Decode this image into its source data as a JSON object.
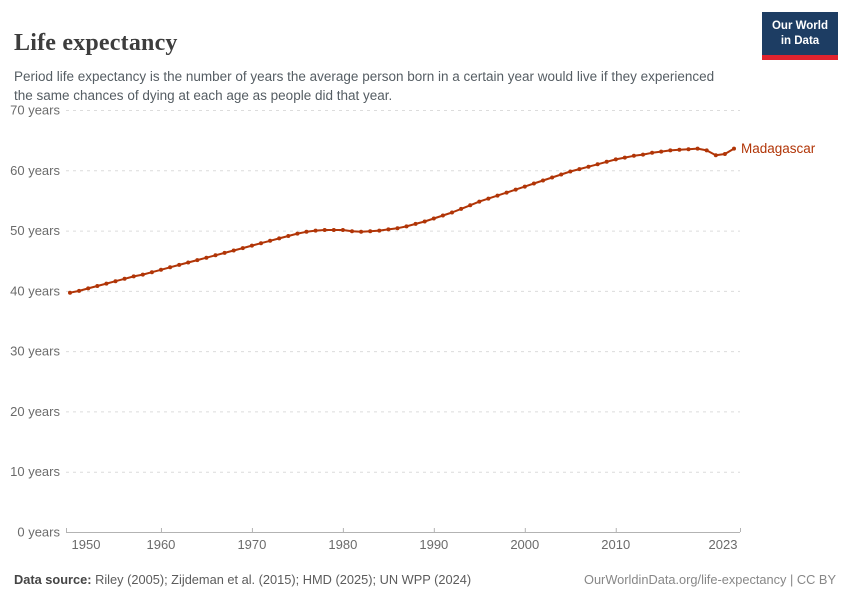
{
  "header": {
    "title": "Life expectancy",
    "subtitle": "Period life expectancy is the number of years the average person born in a certain year would live if they experienced the same chances of dying at each age as people did that year.",
    "logo": {
      "line1": "Our World",
      "line2": "in Data",
      "bg_color": "#1d3d63",
      "accent_color": "#e0232e"
    }
  },
  "chart_data": {
    "type": "line",
    "title": "Life expectancy",
    "entity": "Madagascar",
    "line_color": "#B13507",
    "xlabel": "",
    "ylabel": "",
    "xlim": [
      1950,
      2023
    ],
    "ylim": [
      0,
      70
    ],
    "grid": true,
    "legend_position": "end-of-line",
    "x_ticks": [
      1950,
      1960,
      1970,
      1980,
      1990,
      2000,
      2010,
      2023
    ],
    "y_ticks": [
      0,
      10,
      20,
      30,
      40,
      50,
      60,
      70
    ],
    "y_tick_suffix": " years",
    "x": [
      1950,
      1951,
      1952,
      1953,
      1954,
      1955,
      1956,
      1957,
      1958,
      1959,
      1960,
      1961,
      1962,
      1963,
      1964,
      1965,
      1966,
      1967,
      1968,
      1969,
      1970,
      1971,
      1972,
      1973,
      1974,
      1975,
      1976,
      1977,
      1978,
      1979,
      1980,
      1981,
      1982,
      1983,
      1984,
      1985,
      1986,
      1987,
      1988,
      1989,
      1990,
      1991,
      1992,
      1993,
      1994,
      1995,
      1996,
      1997,
      1998,
      1999,
      2000,
      2001,
      2002,
      2003,
      2004,
      2005,
      2006,
      2007,
      2008,
      2009,
      2010,
      2011,
      2012,
      2013,
      2014,
      2015,
      2016,
      2017,
      2018,
      2019,
      2020,
      2021,
      2022,
      2023
    ],
    "values": [
      39.7,
      40.0,
      40.4,
      40.8,
      41.2,
      41.6,
      42.0,
      42.4,
      42.7,
      43.1,
      43.5,
      43.9,
      44.3,
      44.7,
      45.1,
      45.5,
      45.9,
      46.3,
      46.7,
      47.1,
      47.5,
      47.9,
      48.3,
      48.7,
      49.1,
      49.5,
      49.8,
      50.0,
      50.1,
      50.1,
      50.1,
      49.9,
      49.8,
      49.9,
      50.0,
      50.2,
      50.4,
      50.7,
      51.1,
      51.5,
      52.0,
      52.5,
      53.0,
      53.6,
      54.2,
      54.8,
      55.3,
      55.8,
      56.3,
      56.8,
      57.3,
      57.8,
      58.3,
      58.8,
      59.3,
      59.8,
      60.2,
      60.6,
      61.0,
      61.4,
      61.8,
      62.1,
      62.4,
      62.6,
      62.9,
      63.1,
      63.3,
      63.4,
      63.5,
      63.6,
      63.3,
      62.5,
      62.7,
      63.6
    ]
  },
  "footer": {
    "source_label": "Data source:",
    "source_text": " Riley (2005); Zijdeman et al. (2015); HMD (2025); UN WPP (2024)",
    "link_text": "OurWorldinData.org/life-expectancy | CC BY"
  }
}
